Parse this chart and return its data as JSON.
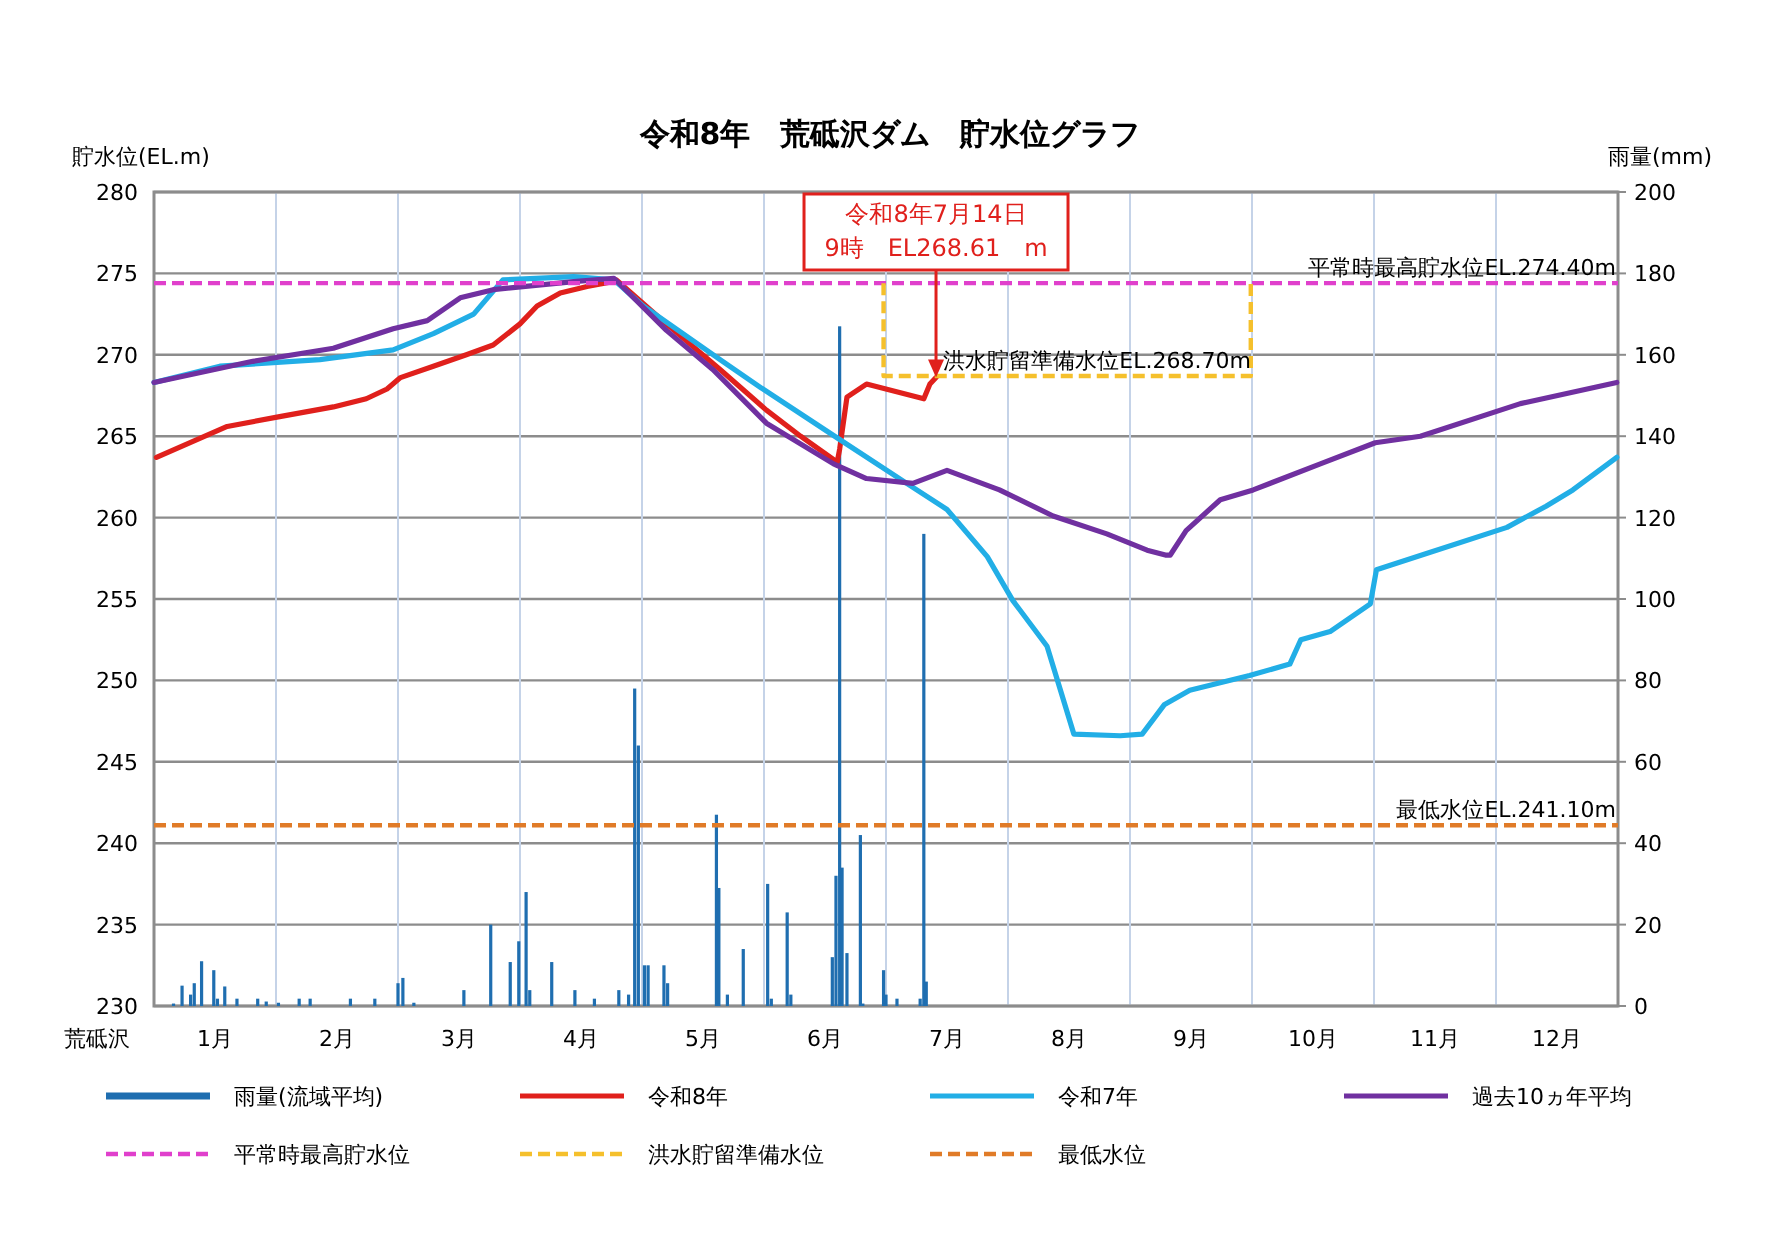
{
  "chart_data": {
    "type": "line",
    "title": "令和8年　荒砥沢ダム　貯水位グラフ",
    "xlabel": "荒砥沢",
    "ylabel": "貯水位(EL.m)",
    "y2label": "雨量(mm)",
    "xlim": [
      0,
      12
    ],
    "xticks": [
      {
        "value": 0,
        "label": null
      },
      {
        "value": 0.5,
        "label": "1月"
      },
      {
        "value": 1,
        "label": null
      },
      {
        "value": 1.5,
        "label": "2月"
      },
      {
        "value": 2,
        "label": null
      },
      {
        "value": 2.5,
        "label": "3月"
      },
      {
        "value": 3,
        "label": null
      },
      {
        "value": 3.5,
        "label": "4月"
      },
      {
        "value": 4,
        "label": null
      },
      {
        "value": 4.5,
        "label": "5月"
      },
      {
        "value": 5,
        "label": null
      },
      {
        "value": 5.5,
        "label": "6月"
      },
      {
        "value": 6,
        "label": null
      },
      {
        "value": 6.5,
        "label": "7月"
      },
      {
        "value": 7,
        "label": null
      },
      {
        "value": 7.5,
        "label": "8月"
      },
      {
        "value": 8,
        "label": null
      },
      {
        "value": 8.5,
        "label": "9月"
      },
      {
        "value": 9,
        "label": null
      },
      {
        "value": 9.5,
        "label": "10月"
      },
      {
        "value": 10,
        "label": null
      },
      {
        "value": 10.5,
        "label": "11月"
      },
      {
        "value": 11,
        "label": null
      },
      {
        "value": 11.5,
        "label": "12月"
      },
      {
        "value": 12,
        "label": null
      }
    ],
    "ylim": [
      230,
      280
    ],
    "yticks": [
      230,
      235,
      240,
      245,
      250,
      255,
      260,
      265,
      270,
      275,
      280
    ],
    "y2lim": [
      0,
      200
    ],
    "y2ticks": [
      0,
      20,
      40,
      60,
      80,
      100,
      120,
      140,
      160,
      180,
      200
    ],
    "grid": true,
    "legend": "bottom",
    "marker": "none",
    "series": [
      {
        "name": "雨量(流域平均)",
        "type": "bar",
        "axis": "y2",
        "color": "#1f6eb0",
        "x": [
          0.16,
          0.23,
          0.3,
          0.33,
          0.39,
          0.49,
          0.52,
          0.58,
          0.68,
          0.85,
          0.92,
          1.02,
          1.19,
          1.28,
          1.61,
          1.81,
          2.0,
          2.04,
          2.13,
          2.54,
          2.76,
          2.92,
          2.99,
          3.05,
          3.08,
          3.26,
          3.45,
          3.61,
          3.81,
          3.89,
          3.94,
          3.97,
          4.02,
          4.05,
          4.18,
          4.21,
          4.61,
          4.63,
          4.7,
          4.83,
          5.03,
          5.06,
          5.19,
          5.22,
          5.56,
          5.59,
          5.62,
          5.64,
          5.68,
          5.79,
          5.81,
          5.98,
          6.0,
          6.09,
          6.28,
          6.31,
          6.33
        ],
        "values": [
          0.6,
          5,
          2.8,
          5.6,
          11,
          8.8,
          1.8,
          4.8,
          1.8,
          1.8,
          1.1,
          0.8,
          1.8,
          1.8,
          1.8,
          1.8,
          5.6,
          6.9,
          0.8,
          3.9,
          20,
          10.8,
          15.9,
          28,
          3.9,
          10.8,
          3.9,
          1.8,
          3.9,
          2.8,
          78,
          64,
          10,
          10,
          10,
          5.6,
          47,
          29,
          2.8,
          14,
          30,
          1.8,
          23,
          2.8,
          12,
          32,
          167,
          34,
          13,
          42,
          0.6,
          8.8,
          2.8,
          1.8,
          1.8,
          116,
          6
        ]
      },
      {
        "name": "令和8年",
        "color": "#e0201c",
        "line_style": "solid",
        "x": [
          0.02,
          0.6,
          1.03,
          1.47,
          1.74,
          1.91,
          2.02,
          2.29,
          2.56,
          2.78,
          3.0,
          3.14,
          3.33,
          3.55,
          3.77,
          3.79,
          4.2,
          4.64,
          5.02,
          5.3,
          5.6,
          5.62,
          5.68,
          5.84,
          6.31,
          6.36,
          6.41
        ],
        "values": [
          263.7,
          265.6,
          266.2,
          266.8,
          267.3,
          267.9,
          268.6,
          269.3,
          270.0,
          270.6,
          271.9,
          273.0,
          273.8,
          274.2,
          274.5,
          274.6,
          271.9,
          269.1,
          266.6,
          265.0,
          263.4,
          264.2,
          267.4,
          268.2,
          267.3,
          268.2,
          268.61
        ]
      },
      {
        "name": "令和7年",
        "color": "#22aee6",
        "line_style": "solid",
        "x": [
          0,
          0.54,
          1.36,
          1.96,
          2.29,
          2.62,
          2.86,
          3.44,
          3.77,
          4.01,
          4.64,
          4.97,
          5.62,
          6.17,
          6.5,
          6.83,
          7.04,
          7.32,
          7.54,
          7.92,
          8.1,
          8.28,
          8.49,
          8.98,
          9.31,
          9.4,
          9.64,
          9.97,
          10.02,
          10.43,
          11.09,
          11.41,
          11.63,
          11.99
        ],
        "values": [
          268.3,
          269.3,
          269.7,
          270.3,
          271.3,
          272.5,
          274.6,
          274.8,
          274.6,
          273.0,
          269.7,
          268.0,
          264.8,
          262.1,
          260.5,
          257.6,
          254.9,
          252.1,
          246.7,
          246.6,
          246.7,
          248.5,
          249.4,
          250.3,
          251.0,
          252.5,
          253.0,
          254.7,
          256.8,
          257.8,
          259.4,
          260.7,
          261.7,
          263.7
        ]
      },
      {
        "name": "過去10ヵ年平均",
        "color": "#7030a0",
        "line_style": "solid",
        "x": [
          0,
          0.81,
          1.47,
          1.96,
          2.24,
          2.51,
          2.78,
          3.44,
          3.77,
          4.2,
          4.58,
          5.02,
          5.57,
          5.84,
          6.22,
          6.5,
          6.93,
          7.37,
          7.81,
          8.14,
          8.29,
          8.33,
          8.46,
          8.74,
          9.01,
          9.56,
          10.01,
          10.38,
          11.2,
          11.99
        ],
        "values": [
          268.3,
          269.6,
          270.4,
          271.6,
          272.1,
          273.5,
          274.0,
          274.5,
          274.7,
          271.5,
          269.1,
          265.8,
          263.3,
          262.4,
          262.1,
          262.9,
          261.7,
          260.1,
          259.0,
          258.0,
          257.7,
          257.7,
          259.2,
          261.1,
          261.7,
          263.3,
          264.6,
          265.0,
          267.0,
          268.3
        ]
      },
      {
        "name": "平常時最高貯水位",
        "color": "#e040cc",
        "line_style": "dashed",
        "x": [
          0,
          12
        ],
        "values": [
          274.4,
          274.4
        ]
      },
      {
        "name": "洪水貯留準備水位",
        "color": "#f5c02c",
        "line_style": "dashed",
        "x": [
          5.98,
          5.98,
          8.99,
          8.99
        ],
        "values": [
          274.4,
          268.7,
          268.7,
          274.4
        ]
      },
      {
        "name": "最低水位",
        "color": "#e07b28",
        "line_style": "dashed",
        "x": [
          0,
          12
        ],
        "values": [
          241.1,
          241.1
        ]
      }
    ],
    "annotations": [
      {
        "text": "令和8年7月14日\n9時　EL268.61　m",
        "x": 6.41,
        "y": 268.61
      },
      {
        "text": "洪水貯留準備水位EL.268.70m",
        "x": 6.47,
        "y": 268.7
      },
      {
        "text": "平常時最高貯水位EL.274.40m",
        "x": 12,
        "y": 274.4
      },
      {
        "text": "最低水位EL.241.10m",
        "x": 12,
        "y": 241.1
      }
    ]
  }
}
